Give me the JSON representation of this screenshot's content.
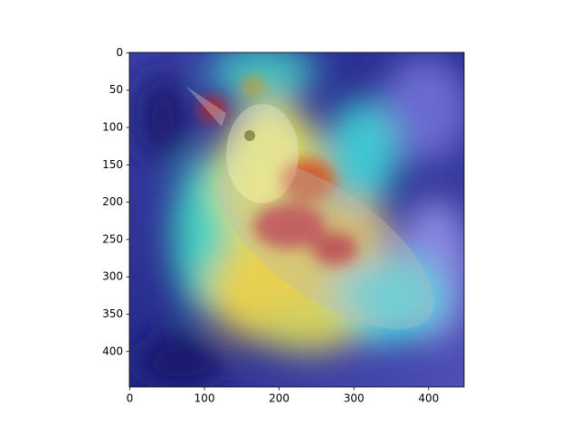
{
  "chart_data": {
    "type": "image",
    "xlim": [
      -0.5,
      447.5
    ],
    "ylim": [
      447.5,
      -0.5
    ],
    "xticks": [
      0,
      100,
      200,
      300,
      400
    ],
    "yticks": [
      0,
      50,
      100,
      150,
      200,
      250,
      300,
      350,
      400
    ]
  }
}
